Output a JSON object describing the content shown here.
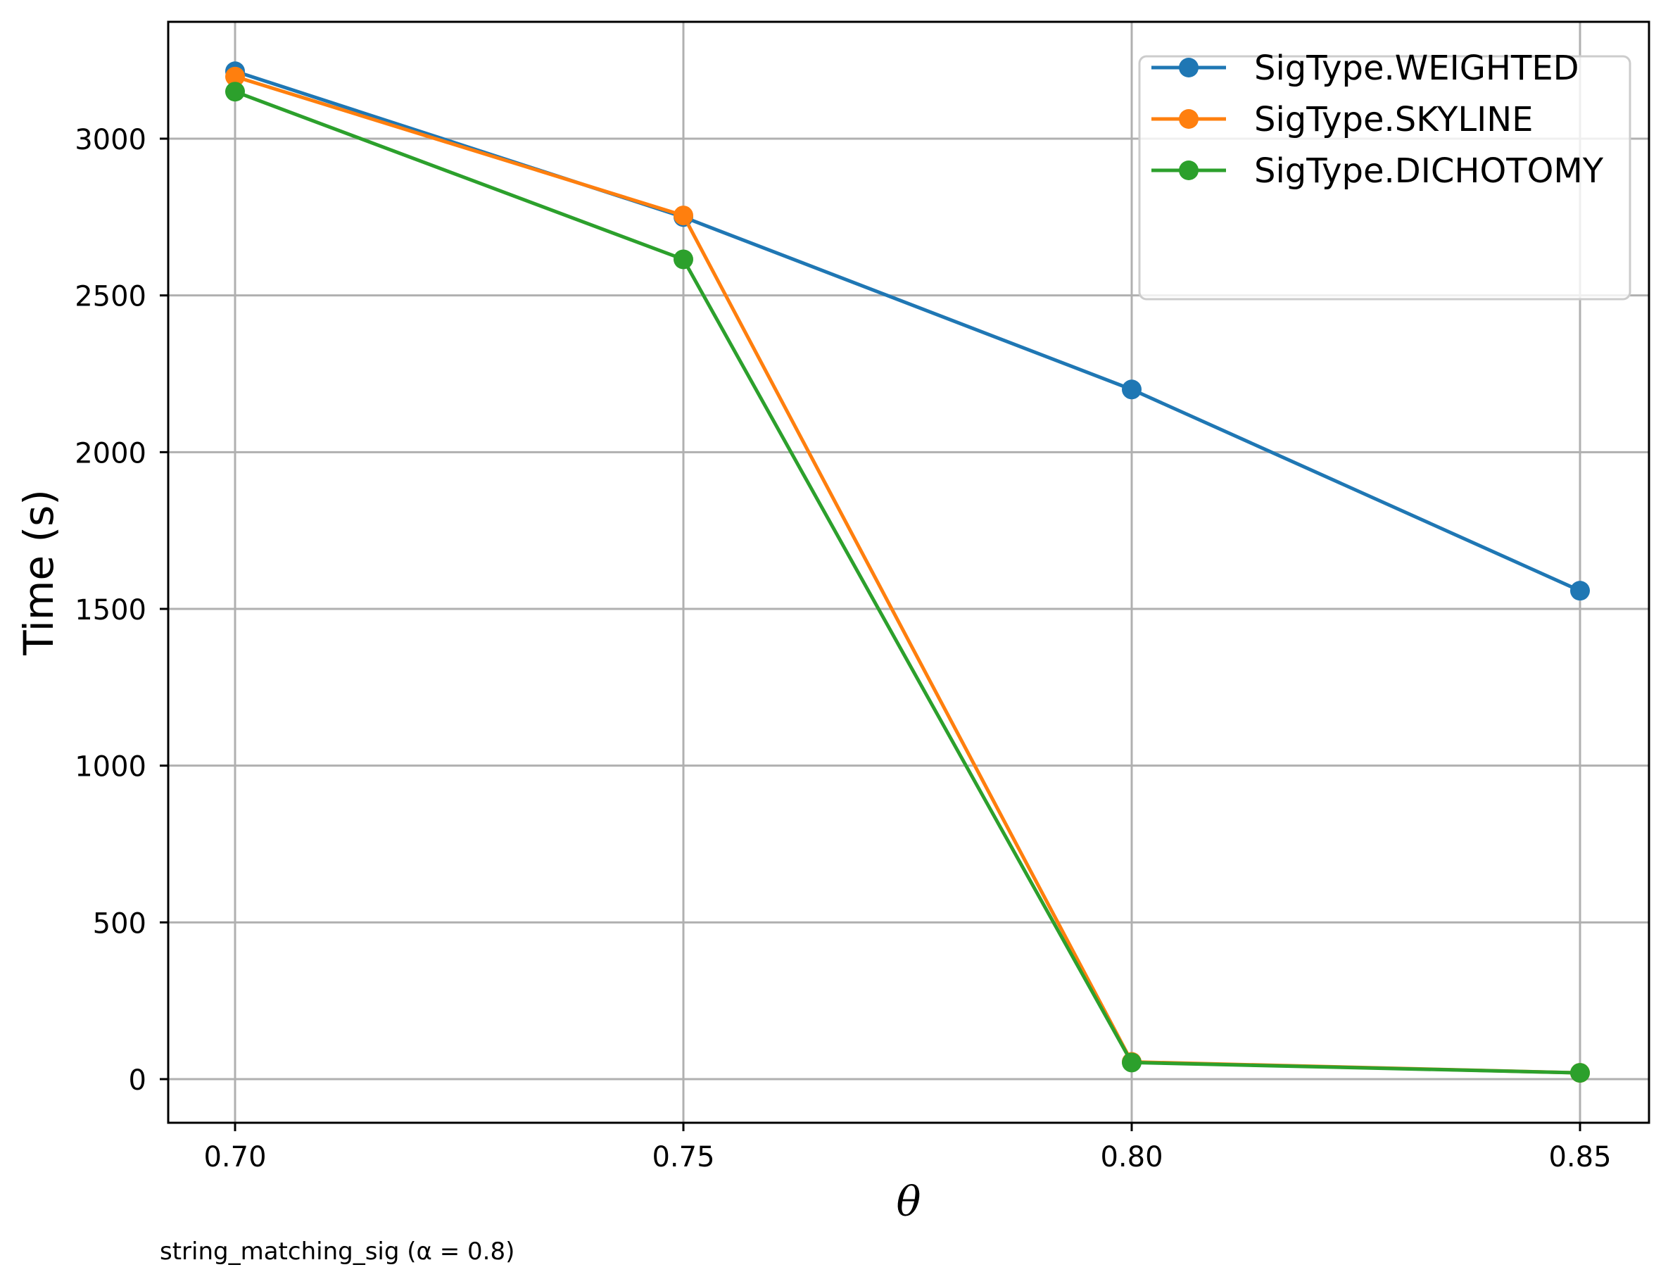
{
  "chart_data": {
    "type": "line",
    "title": "",
    "xlabel": "θ",
    "ylabel": "Time (s)",
    "caption": "string_matching_sig (α = 0.8)",
    "x": [
      0.7,
      0.75,
      0.8,
      0.85
    ],
    "x_tick_labels": [
      "0.70",
      "0.75",
      "0.80",
      "0.85"
    ],
    "y_ticks": [
      0,
      500,
      1000,
      1500,
      2000,
      2500,
      3000
    ],
    "y_tick_labels": [
      "0",
      "500",
      "1000",
      "1500",
      "2000",
      "2500",
      "3000"
    ],
    "xlim": [
      0.6925,
      0.8575
    ],
    "ylim": [
      -140,
      3370
    ],
    "grid": true,
    "legend_position": "upper right",
    "series": [
      {
        "name": "SigType.WEIGHTED",
        "color": "#1f77b4",
        "values": [
          3215,
          2750,
          2200,
          1558
        ]
      },
      {
        "name": "SigType.SKYLINE",
        "color": "#ff7f0e",
        "values": [
          3198,
          2755,
          55,
          20
        ]
      },
      {
        "name": "SigType.DICHOTOMY",
        "color": "#2ca02c",
        "values": [
          3150,
          2615,
          53,
          20
        ]
      }
    ]
  },
  "colors": {
    "grid": "#b0b0b0",
    "spine": "#000000",
    "legend_border": "#cccccc"
  }
}
